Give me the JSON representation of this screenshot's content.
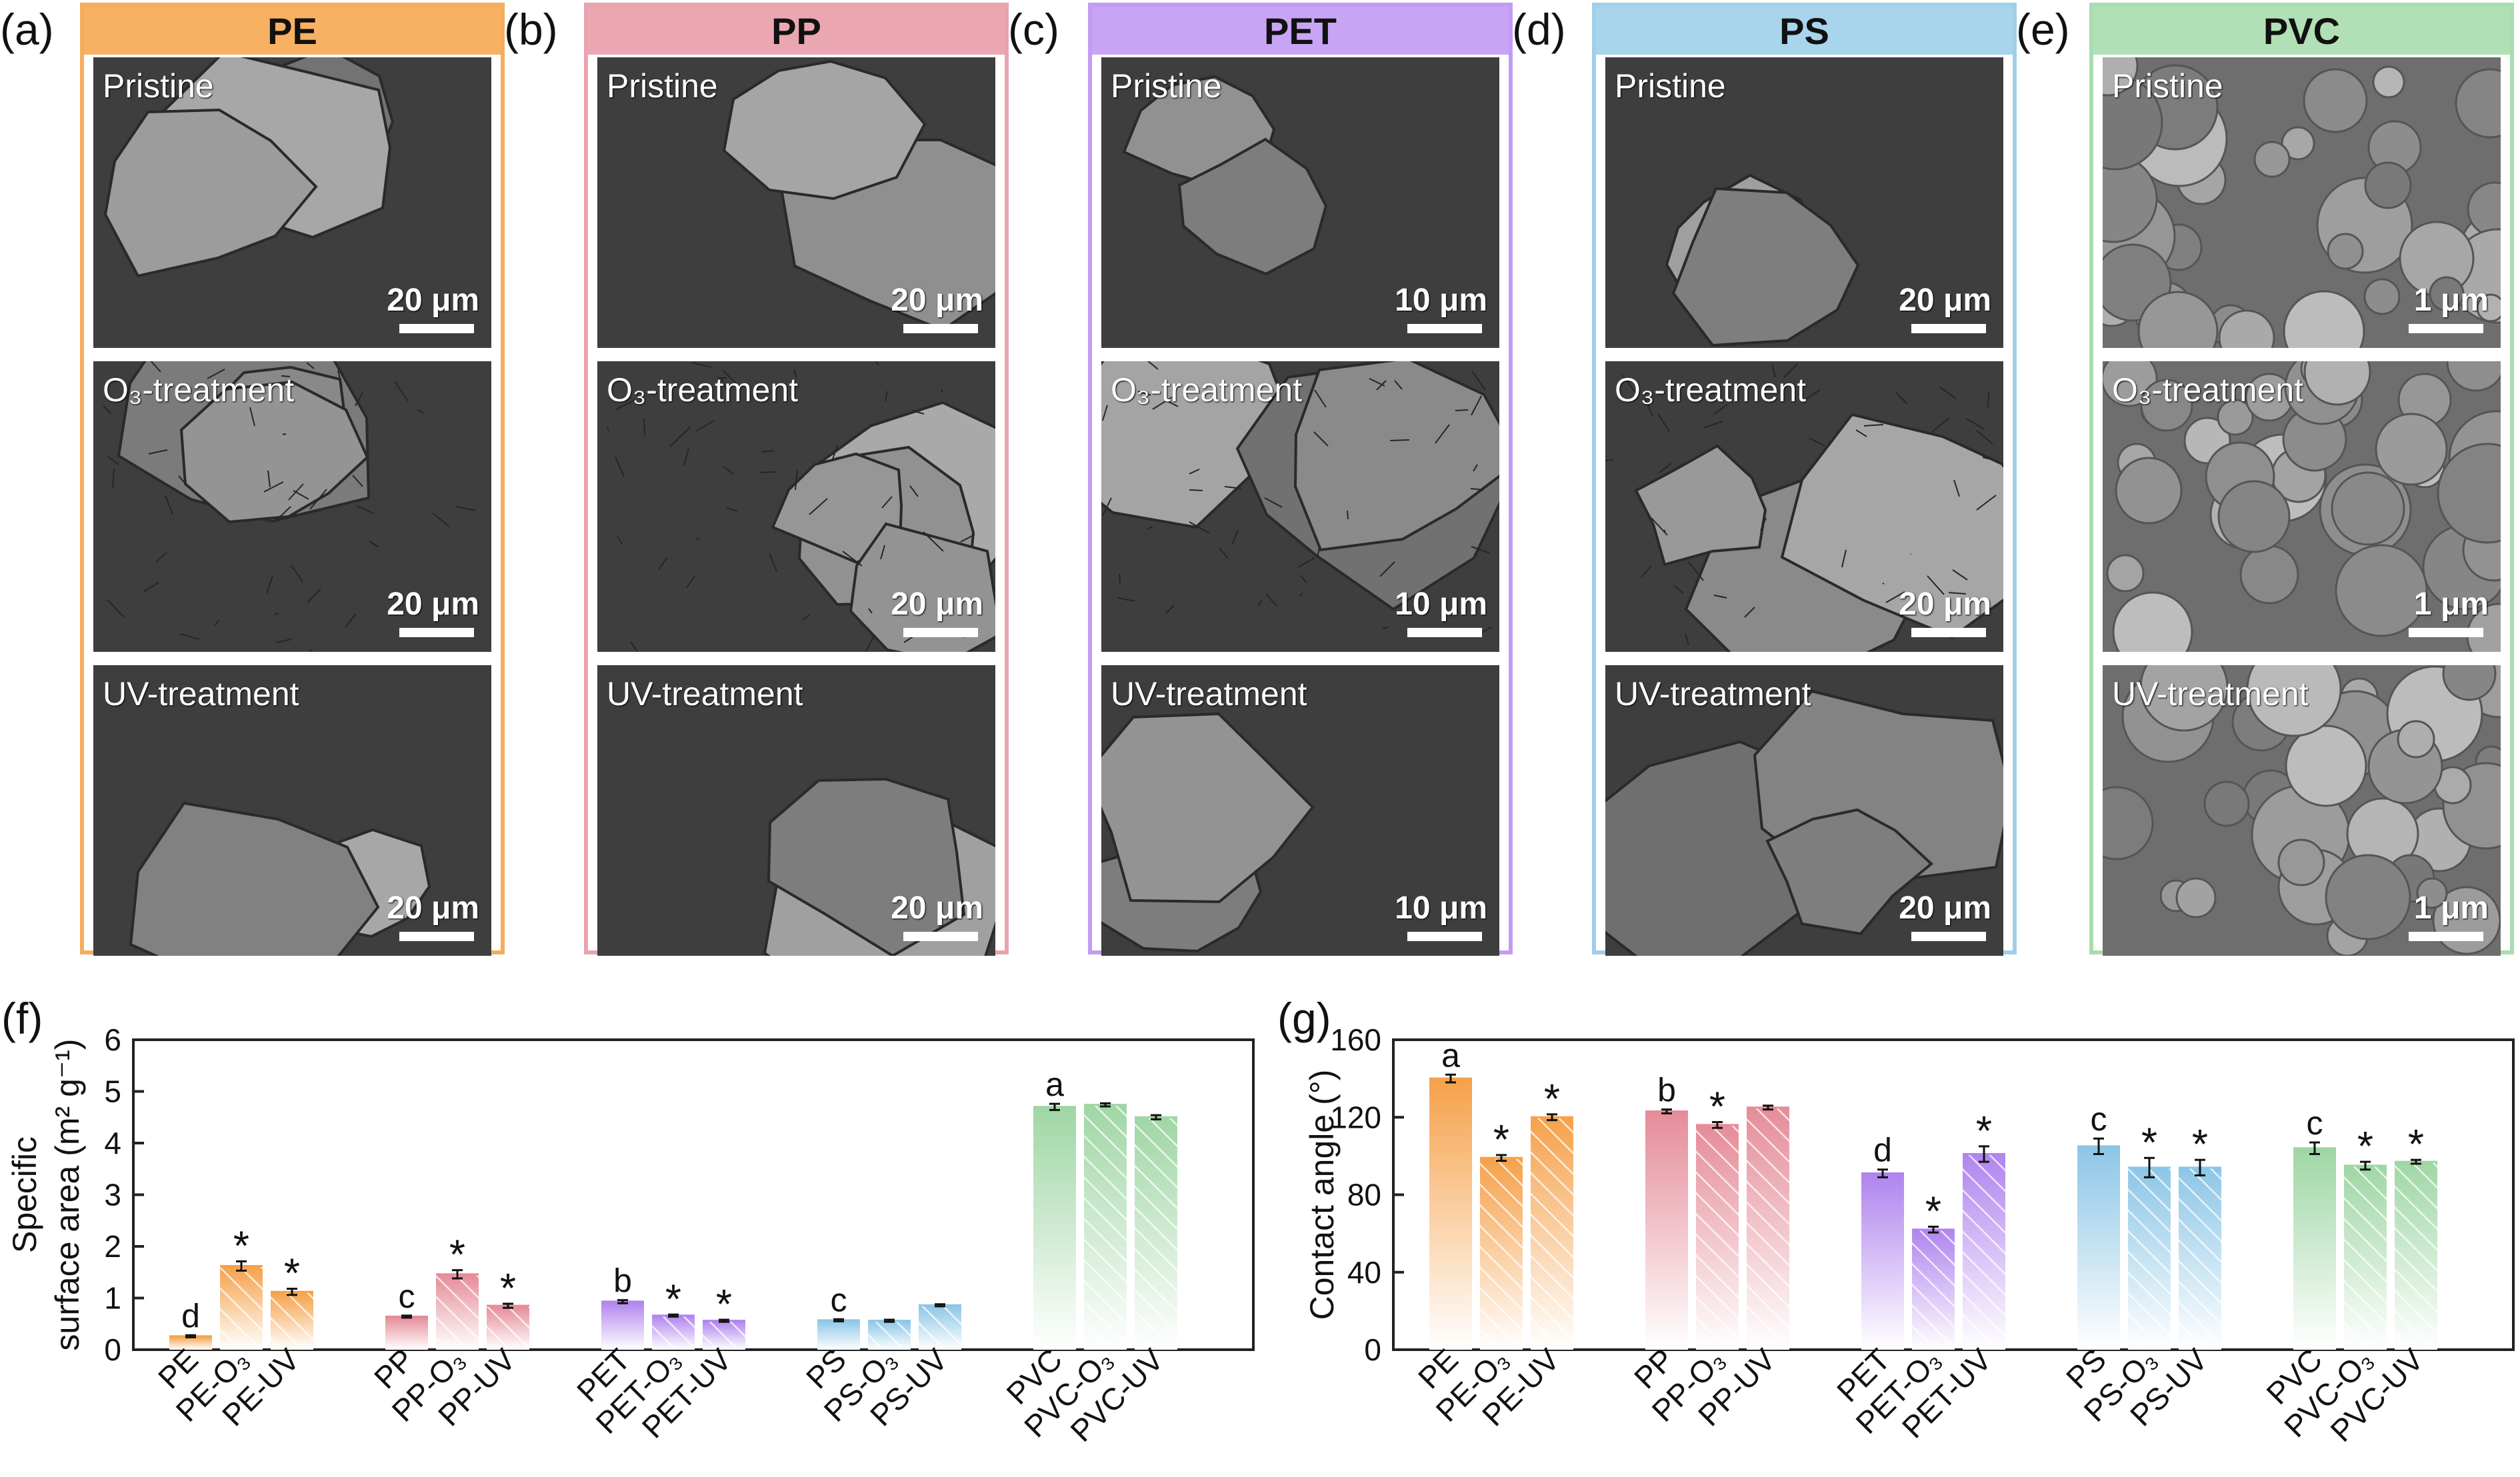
{
  "sem_panels": [
    {
      "label": "(a)",
      "polymer": "PE",
      "color": "#f5ad5c",
      "head_bg": "#f8b162",
      "rows": [
        {
          "condition": "Pristine",
          "scale": "20 μm"
        },
        {
          "condition": "O₃-treatment",
          "scale": "20 μm"
        },
        {
          "condition": "UV-treatment",
          "scale": "20 μm"
        }
      ]
    },
    {
      "label": "(b)",
      "polymer": "PP",
      "color": "#e9a3ad",
      "head_bg": "#eaa7b1",
      "rows": [
        {
          "condition": "Pristine",
          "scale": "20 μm"
        },
        {
          "condition": "O₃-treatment",
          "scale": "20 μm"
        },
        {
          "condition": "UV-treatment",
          "scale": "20 μm"
        }
      ]
    },
    {
      "label": "(c)",
      "polymer": "PET",
      "color": "#c29cf2",
      "head_bg": "#c8a5f4",
      "rows": [
        {
          "condition": "Pristine",
          "scale": "10 μm"
        },
        {
          "condition": "O₃-treatment",
          "scale": "10 μm"
        },
        {
          "condition": "UV-treatment",
          "scale": "10 μm"
        }
      ]
    },
    {
      "label": "(d)",
      "polymer": "PS",
      "color": "#9fcfe9",
      "head_bg": "#a8d4ec",
      "rows": [
        {
          "condition": "Pristine",
          "scale": "20 μm"
        },
        {
          "condition": "O₃-treatment",
          "scale": "20 μm"
        },
        {
          "condition": "UV-treatment",
          "scale": "20 μm"
        }
      ]
    },
    {
      "label": "(e)",
      "polymer": "PVC",
      "color": "#a9dcae",
      "head_bg": "#b2e0b6",
      "rows": [
        {
          "condition": "Pristine",
          "scale": "1 μm"
        },
        {
          "condition": "O₃-treatment",
          "scale": "1 μm"
        },
        {
          "condition": "UV-treatment",
          "scale": "1 μm"
        }
      ]
    }
  ],
  "chart_data": [
    {
      "panel_label": "(f)",
      "type": "bar",
      "ylabel_line1": "Specific",
      "ylabel_line2": "surface area (m² g⁻¹)",
      "ylim": [
        0,
        6
      ],
      "yticks": [
        "0",
        "1",
        "2",
        "3",
        "4",
        "5",
        "6"
      ],
      "groups": [
        {
          "color": "#f5a14a",
          "bars": [
            {
              "label": "PE",
              "value": 0.26,
              "err": 0.02,
              "mark": "d",
              "hatch": false
            },
            {
              "label": "PE-O₃",
              "value": 1.62,
              "err": 0.09,
              "mark": "*",
              "hatch": true
            },
            {
              "label": "PE-UV",
              "value": 1.12,
              "err": 0.06,
              "mark": "*",
              "hatch": true
            }
          ]
        },
        {
          "color": "#e58c99",
          "bars": [
            {
              "label": "PP",
              "value": 0.64,
              "err": 0.02,
              "mark": "c",
              "hatch": false
            },
            {
              "label": "PP-O₃",
              "value": 1.46,
              "err": 0.08,
              "mark": "*",
              "hatch": true
            },
            {
              "label": "PP-UV",
              "value": 0.85,
              "err": 0.04,
              "mark": "*",
              "hatch": true
            }
          ]
        },
        {
          "color": "#b084ee",
          "bars": [
            {
              "label": "PET",
              "value": 0.93,
              "err": 0.03,
              "mark": "b",
              "hatch": false
            },
            {
              "label": "PET-O₃",
              "value": 0.66,
              "err": 0.02,
              "mark": "*",
              "hatch": true
            },
            {
              "label": "PET-UV",
              "value": 0.56,
              "err": 0.02,
              "mark": "*",
              "hatch": true
            }
          ]
        },
        {
          "color": "#8cc6e6",
          "bars": [
            {
              "label": "PS",
              "value": 0.57,
              "err": 0.02,
              "mark": "c",
              "hatch": false
            },
            {
              "label": "PS-O₃",
              "value": 0.56,
              "err": 0.02,
              "mark": "",
              "hatch": true
            },
            {
              "label": "PS-UV",
              "value": 0.86,
              "err": 0.02,
              "mark": "",
              "hatch": true
            }
          ]
        },
        {
          "color": "#9fd6a4",
          "bars": [
            {
              "label": "PVC",
              "value": 4.7,
              "err": 0.06,
              "mark": "a",
              "hatch": false
            },
            {
              "label": "PVC-O₃",
              "value": 4.74,
              "err": 0.03,
              "mark": "",
              "hatch": true
            },
            {
              "label": "PVC-UV",
              "value": 4.5,
              "err": 0.04,
              "mark": "",
              "hatch": true
            }
          ]
        }
      ]
    },
    {
      "panel_label": "(g)",
      "type": "bar",
      "ylabel_line1": "",
      "ylabel_line2": "Contact angle (°)",
      "ylim": [
        0,
        160
      ],
      "yticks": [
        "0",
        "40",
        "80",
        "120",
        "160"
      ],
      "groups": [
        {
          "color": "#f5a14a",
          "bars": [
            {
              "label": "PE",
              "value": 140,
              "err": 2,
              "mark": "a",
              "hatch": false
            },
            {
              "label": "PE-O₃",
              "value": 99,
              "err": 1.5,
              "mark": "*",
              "hatch": true
            },
            {
              "label": "PE-UV",
              "value": 120,
              "err": 1.5,
              "mark": "*",
              "hatch": true
            }
          ]
        },
        {
          "color": "#e58c99",
          "bars": [
            {
              "label": "PP",
              "value": 123,
              "err": 1,
              "mark": "b",
              "hatch": false
            },
            {
              "label": "PP-O₃",
              "value": 116,
              "err": 1.5,
              "mark": "*",
              "hatch": true
            },
            {
              "label": "PP-UV",
              "value": 125,
              "err": 1,
              "mark": "",
              "hatch": true
            }
          ]
        },
        {
          "color": "#b084ee",
          "bars": [
            {
              "label": "PET",
              "value": 91,
              "err": 2,
              "mark": "d",
              "hatch": false
            },
            {
              "label": "PET-O₃",
              "value": 62,
              "err": 1.5,
              "mark": "*",
              "hatch": true
            },
            {
              "label": "PET-UV",
              "value": 101,
              "err": 4,
              "mark": "*",
              "hatch": true
            }
          ]
        },
        {
          "color": "#8cc6e6",
          "bars": [
            {
              "label": "PS",
              "value": 105,
              "err": 4,
              "mark": "c",
              "hatch": false
            },
            {
              "label": "PS-O₃",
              "value": 94,
              "err": 5,
              "mark": "*",
              "hatch": true
            },
            {
              "label": "PS-UV",
              "value": 94,
              "err": 4,
              "mark": "*",
              "hatch": true
            }
          ]
        },
        {
          "color": "#9fd6a4",
          "bars": [
            {
              "label": "PVC",
              "value": 104,
              "err": 3,
              "mark": "c",
              "hatch": false
            },
            {
              "label": "PVC-O₃",
              "value": 95,
              "err": 2,
              "mark": "*",
              "hatch": true
            },
            {
              "label": "PVC-UV",
              "value": 97,
              "err": 1,
              "mark": "*",
              "hatch": true
            }
          ]
        }
      ]
    }
  ]
}
